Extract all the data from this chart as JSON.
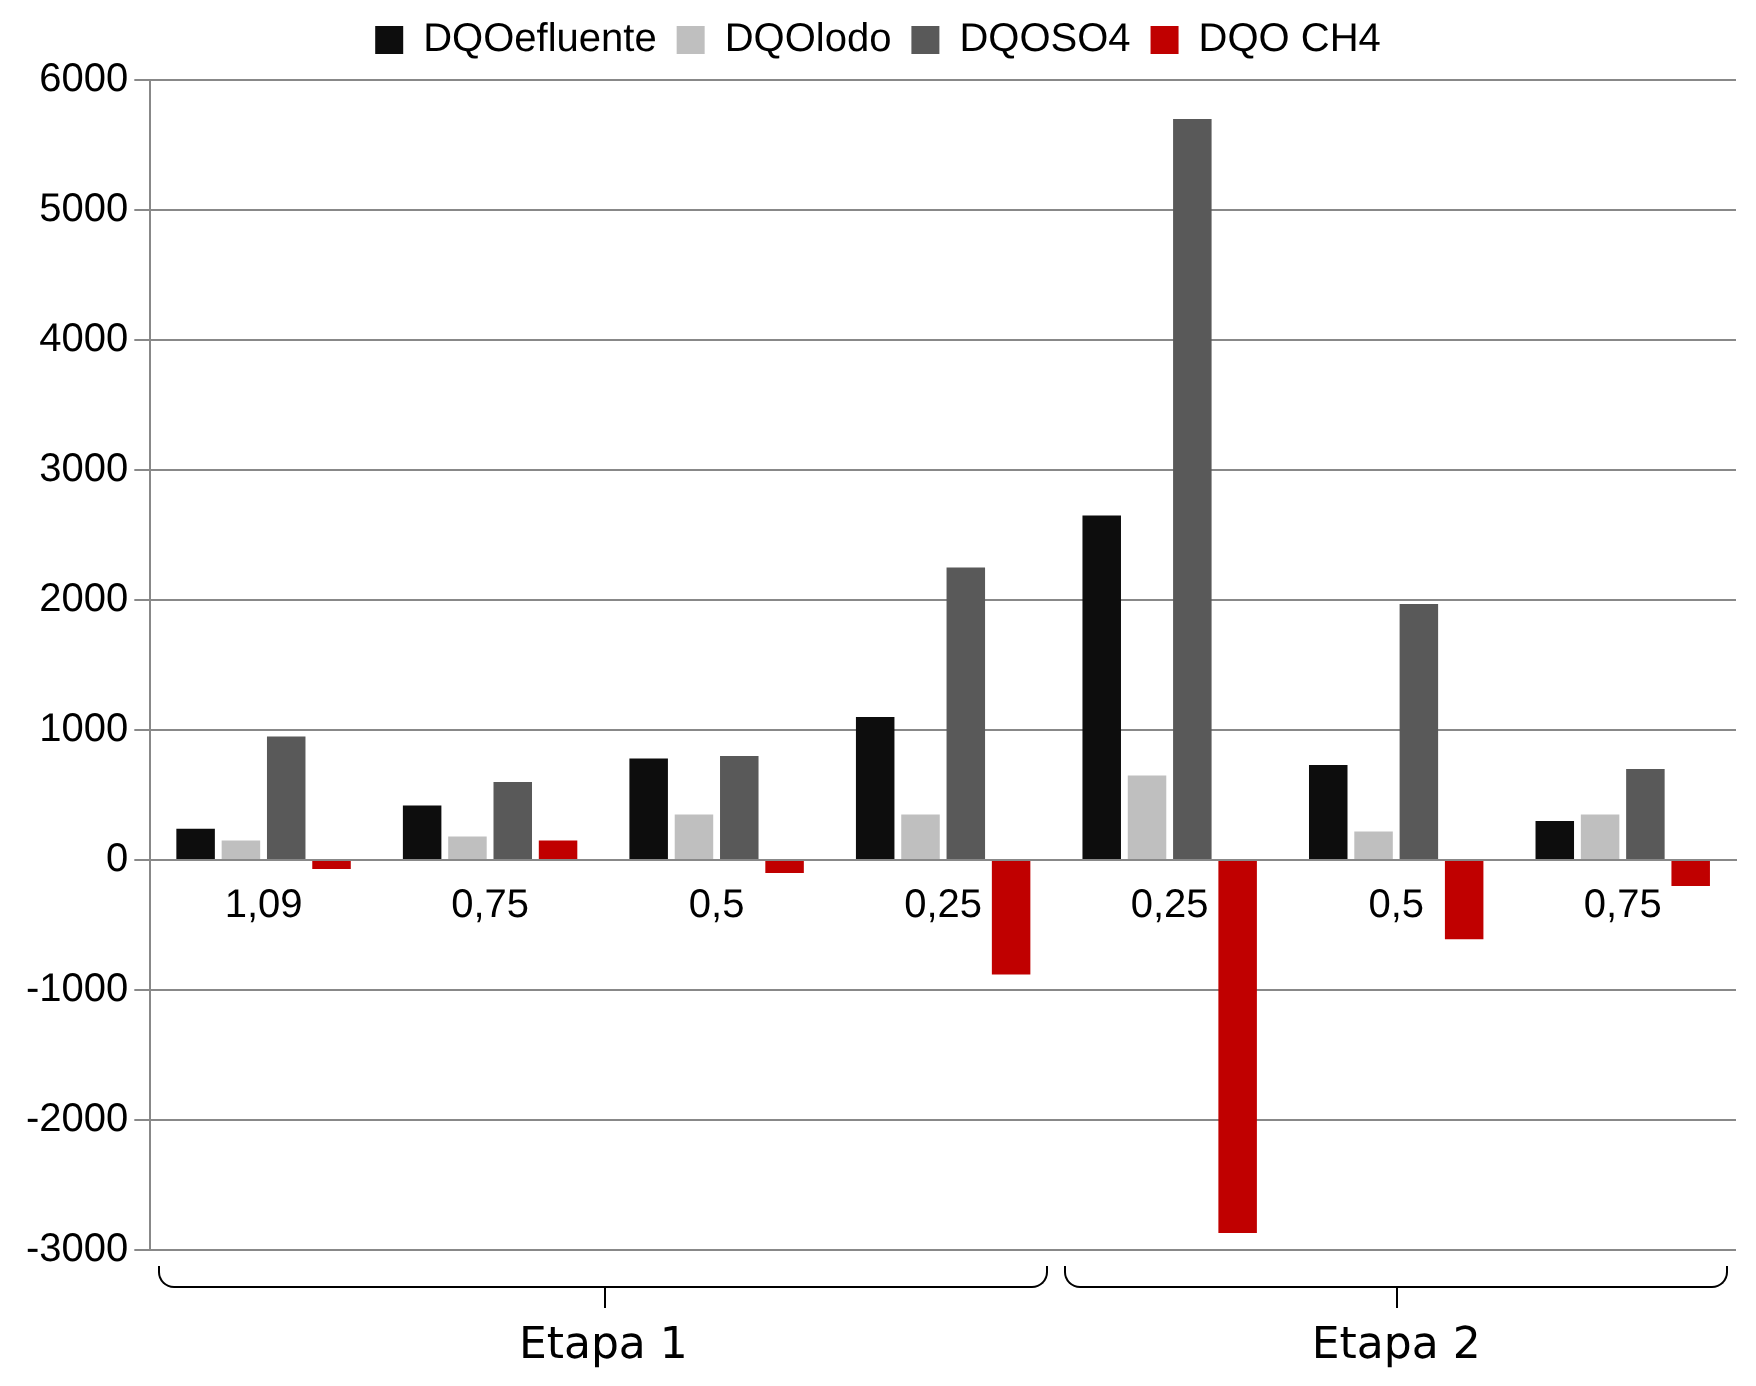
{
  "chart_data": {
    "type": "bar",
    "categories": [
      "1,09",
      "0,75",
      "0,5",
      "0,25",
      "0,25",
      "0,5",
      "0,75"
    ],
    "series": [
      {
        "name": "DQOefluente",
        "color": "#0d0d0d",
        "values": [
          240,
          420,
          780,
          1100,
          2650,
          730,
          300
        ]
      },
      {
        "name": "DQOlodo",
        "color": "#bfbfbf",
        "values": [
          150,
          180,
          350,
          350,
          650,
          220,
          350
        ]
      },
      {
        "name": "DQOSO4",
        "color": "#595959",
        "values": [
          950,
          600,
          800,
          2250,
          5700,
          1970,
          700
        ]
      },
      {
        "name": "DQO CH4",
        "color": "#c00000",
        "values": [
          -70,
          150,
          -100,
          -880,
          -2870,
          -610,
          -200
        ]
      }
    ],
    "ylim": [
      -3000,
      6000
    ],
    "yticks": [
      -3000,
      -2000,
      -1000,
      0,
      1000,
      2000,
      3000,
      4000,
      5000,
      6000
    ],
    "grid": "y",
    "legend": "top",
    "annotations": [
      "Etapa 1",
      "Etapa 2"
    ]
  }
}
